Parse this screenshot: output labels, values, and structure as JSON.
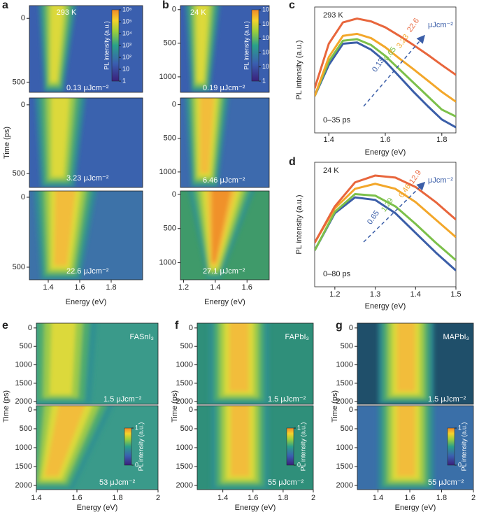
{
  "chart_data": [
    {
      "type": "heatmap",
      "panel": "a",
      "x_label": "Energy (eV)",
      "y_label": "Time (ps)",
      "xlim": [
        1.28,
        2.0
      ],
      "xticks": [
        1.4,
        1.6,
        1.8
      ],
      "rows": [
        {
          "ylim": [
            -100,
            580
          ],
          "yticks": [
            0,
            500
          ],
          "annotations": [
            "293 K",
            "0.13 μJcm⁻²"
          ]
        },
        {
          "ylim": [
            -50,
            600
          ],
          "yticks": [
            0,
            500
          ],
          "annotations": [
            "3.23 μJcm⁻²"
          ]
        },
        {
          "ylim": [
            -45,
            590
          ],
          "yticks": [
            0,
            500
          ],
          "annotations": [
            "22.6 μJcm⁻²"
          ]
        }
      ],
      "colorbar": {
        "label": "PL intensity (a.u.)",
        "log": true,
        "lim": [
          1,
          1000000
        ],
        "ticks": [
          1,
          10,
          {
            "value": 100,
            "label": "10²"
          },
          {
            "value": 1000,
            "label": "10³"
          },
          {
            "value": 10000,
            "label": "10⁴"
          },
          {
            "value": 100000,
            "label": "10⁵"
          },
          {
            "value": 1000000,
            "label": "10⁶"
          }
        ]
      }
    },
    {
      "type": "heatmap",
      "panel": "b",
      "x_label": "Energy (eV)",
      "xlim": [
        1.18,
        1.74
      ],
      "xticks": [
        1.2,
        1.4,
        1.6
      ],
      "rows": [
        {
          "ylim": [
            -60,
            1230
          ],
          "yticks": [
            0,
            500,
            1000
          ],
          "annotations": [
            "24 K",
            "0.19 μJcm⁻²"
          ]
        },
        {
          "ylim": [
            -100,
            1230
          ],
          "yticks": [
            0,
            500,
            1000
          ],
          "annotations": [
            "6.46 μJcm⁻²"
          ]
        },
        {
          "ylim": [
            -50,
            1250
          ],
          "yticks": [
            0,
            500,
            1000
          ],
          "annotations": [
            "27.1 μJcm⁻²"
          ]
        }
      ],
      "colorbar": {
        "label": "PL intensity (a.u.)",
        "log": true,
        "lim": [
          1,
          100000
        ],
        "ticks": [
          1,
          10,
          {
            "value": 100,
            "label": "10²"
          },
          {
            "value": 1000,
            "label": "10³"
          },
          {
            "value": 10000,
            "label": "10⁴"
          },
          {
            "value": 100000,
            "label": "10⁵"
          }
        ]
      }
    },
    {
      "type": "line",
      "panel": "c",
      "x_label": "Energy (eV)",
      "y_label": "PL intensity (a.u.)",
      "xlim": [
        1.35,
        1.85
      ],
      "xticks": [
        1.4,
        1.6,
        1.8
      ],
      "log_y": true,
      "ylim": [
        0.003,
        2
      ],
      "annotations": [
        "293 K",
        "0–35 ps",
        "μJcm⁻²"
      ],
      "x": [
        1.35,
        1.4,
        1.45,
        1.5,
        1.55,
        1.6,
        1.65,
        1.7,
        1.75,
        1.8,
        1.85
      ],
      "series": [
        {
          "name": "22.6",
          "color": "#e8663c",
          "values": [
            0.03,
            0.3,
            0.9,
            1.1,
            0.95,
            0.7,
            0.45,
            0.28,
            0.17,
            0.1,
            0.06
          ]
        },
        {
          "name": "3.23",
          "color": "#f3a72a",
          "values": [
            0.02,
            0.15,
            0.45,
            0.5,
            0.4,
            0.25,
            0.14,
            0.08,
            0.045,
            0.025,
            0.015
          ]
        },
        {
          "name": "0.65",
          "color": "#7cc04a",
          "values": [
            0.02,
            0.12,
            0.35,
            0.38,
            0.28,
            0.16,
            0.08,
            0.04,
            0.02,
            0.01,
            0.007
          ]
        },
        {
          "name": "0.13",
          "color": "#3b5ea8",
          "values": [
            0.02,
            0.1,
            0.3,
            0.32,
            0.22,
            0.12,
            0.055,
            0.025,
            0.012,
            0.006,
            0.004
          ]
        }
      ]
    },
    {
      "type": "line",
      "panel": "d",
      "x_label": "Energy (eV)",
      "y_label": "PL intensity (a.u.)",
      "xlim": [
        1.15,
        1.5
      ],
      "xticks": [
        1.2,
        1.3,
        1.4,
        1.5
      ],
      "log_y": true,
      "ylim": [
        0.003,
        2
      ],
      "annotations": [
        "24 K",
        "0–80 ps",
        "μJcm⁻²"
      ],
      "x": [
        1.15,
        1.2,
        1.25,
        1.3,
        1.35,
        1.4,
        1.45,
        1.5
      ],
      "series": [
        {
          "name": "12.9",
          "color": "#e8663c",
          "values": [
            0.03,
            0.2,
            0.7,
            1.0,
            0.9,
            0.55,
            0.25,
            0.1
          ]
        },
        {
          "name": "6.46",
          "color": "#f3a72a",
          "values": [
            0.03,
            0.18,
            0.5,
            0.65,
            0.5,
            0.25,
            0.1,
            0.04
          ]
        },
        {
          "name": "1.29",
          "color": "#7cc04a",
          "values": [
            0.02,
            0.15,
            0.38,
            0.35,
            0.2,
            0.08,
            0.03,
            0.012
          ]
        },
        {
          "name": "0.65",
          "color": "#3b5ea8",
          "values": [
            0.02,
            0.14,
            0.32,
            0.28,
            0.14,
            0.05,
            0.018,
            0.007
          ]
        }
      ]
    },
    {
      "type": "heatmap",
      "panel": "e",
      "x_label": "Energy (eV)",
      "y_label": "Time (ps)",
      "xlim": [
        1.4,
        2.0
      ],
      "xticks": [
        1.4,
        1.6,
        1.8,
        2.0
      ],
      "rows": [
        {
          "ylim": [
            -130,
            2070
          ],
          "yticks": [
            0,
            500,
            1000,
            1500,
            2000
          ],
          "annotations": [
            "FASnI₃",
            "1.5 μJcm⁻²"
          ]
        },
        {
          "ylim": [
            -110,
            2110
          ],
          "yticks": [
            0,
            500,
            1000,
            1500,
            2000
          ],
          "annotations": [
            "53 μJcm⁻²"
          ]
        }
      ],
      "colorbar": {
        "label": "PL intensity (a.u.)",
        "log": false,
        "lim": [
          0,
          1
        ],
        "ticks": [
          0,
          1
        ]
      }
    },
    {
      "type": "heatmap",
      "panel": "f",
      "x_label": "Energy (eV)",
      "y_label": "Time (ps)",
      "xlim": [
        1.23,
        2.0
      ],
      "xticks": [
        1.4,
        1.6,
        1.8,
        2.0
      ],
      "rows": [
        {
          "ylim": [
            -130,
            2070
          ],
          "yticks": [
            0,
            500,
            1000,
            1500,
            2000
          ],
          "annotations": [
            "FAPbI₃",
            "1.5 μJcm⁻²"
          ]
        },
        {
          "ylim": [
            -110,
            2110
          ],
          "yticks": [
            0,
            500,
            1000,
            1500,
            2000
          ],
          "annotations": [
            "55 μJcm⁻²"
          ]
        }
      ],
      "colorbar": {
        "label": "PL intensity (a.u.)",
        "log": false,
        "lim": [
          0,
          1
        ],
        "ticks": [
          0,
          1
        ]
      }
    },
    {
      "type": "heatmap",
      "panel": "g",
      "x_label": "Energy (eV)",
      "y_label": "Time (ps)",
      "xlim": [
        1.27,
        2.0
      ],
      "xticks": [
        1.4,
        1.6,
        1.8,
        2.0
      ],
      "rows": [
        {
          "ylim": [
            -130,
            2070
          ],
          "yticks": [
            0,
            500,
            1000,
            1500,
            2000
          ],
          "annotations": [
            "MAPbI₃",
            "1.5 μJcm⁻²"
          ]
        },
        {
          "ylim": [
            -110,
            2110
          ],
          "yticks": [
            0,
            500,
            1000,
            1500,
            2000
          ],
          "annotations": [
            "55 μJcm⁻²"
          ]
        }
      ],
      "colorbar": {
        "label": "PL intensity (a.u.)",
        "log": false,
        "lim": [
          0,
          1
        ],
        "ticks": [
          0,
          1
        ]
      }
    }
  ]
}
